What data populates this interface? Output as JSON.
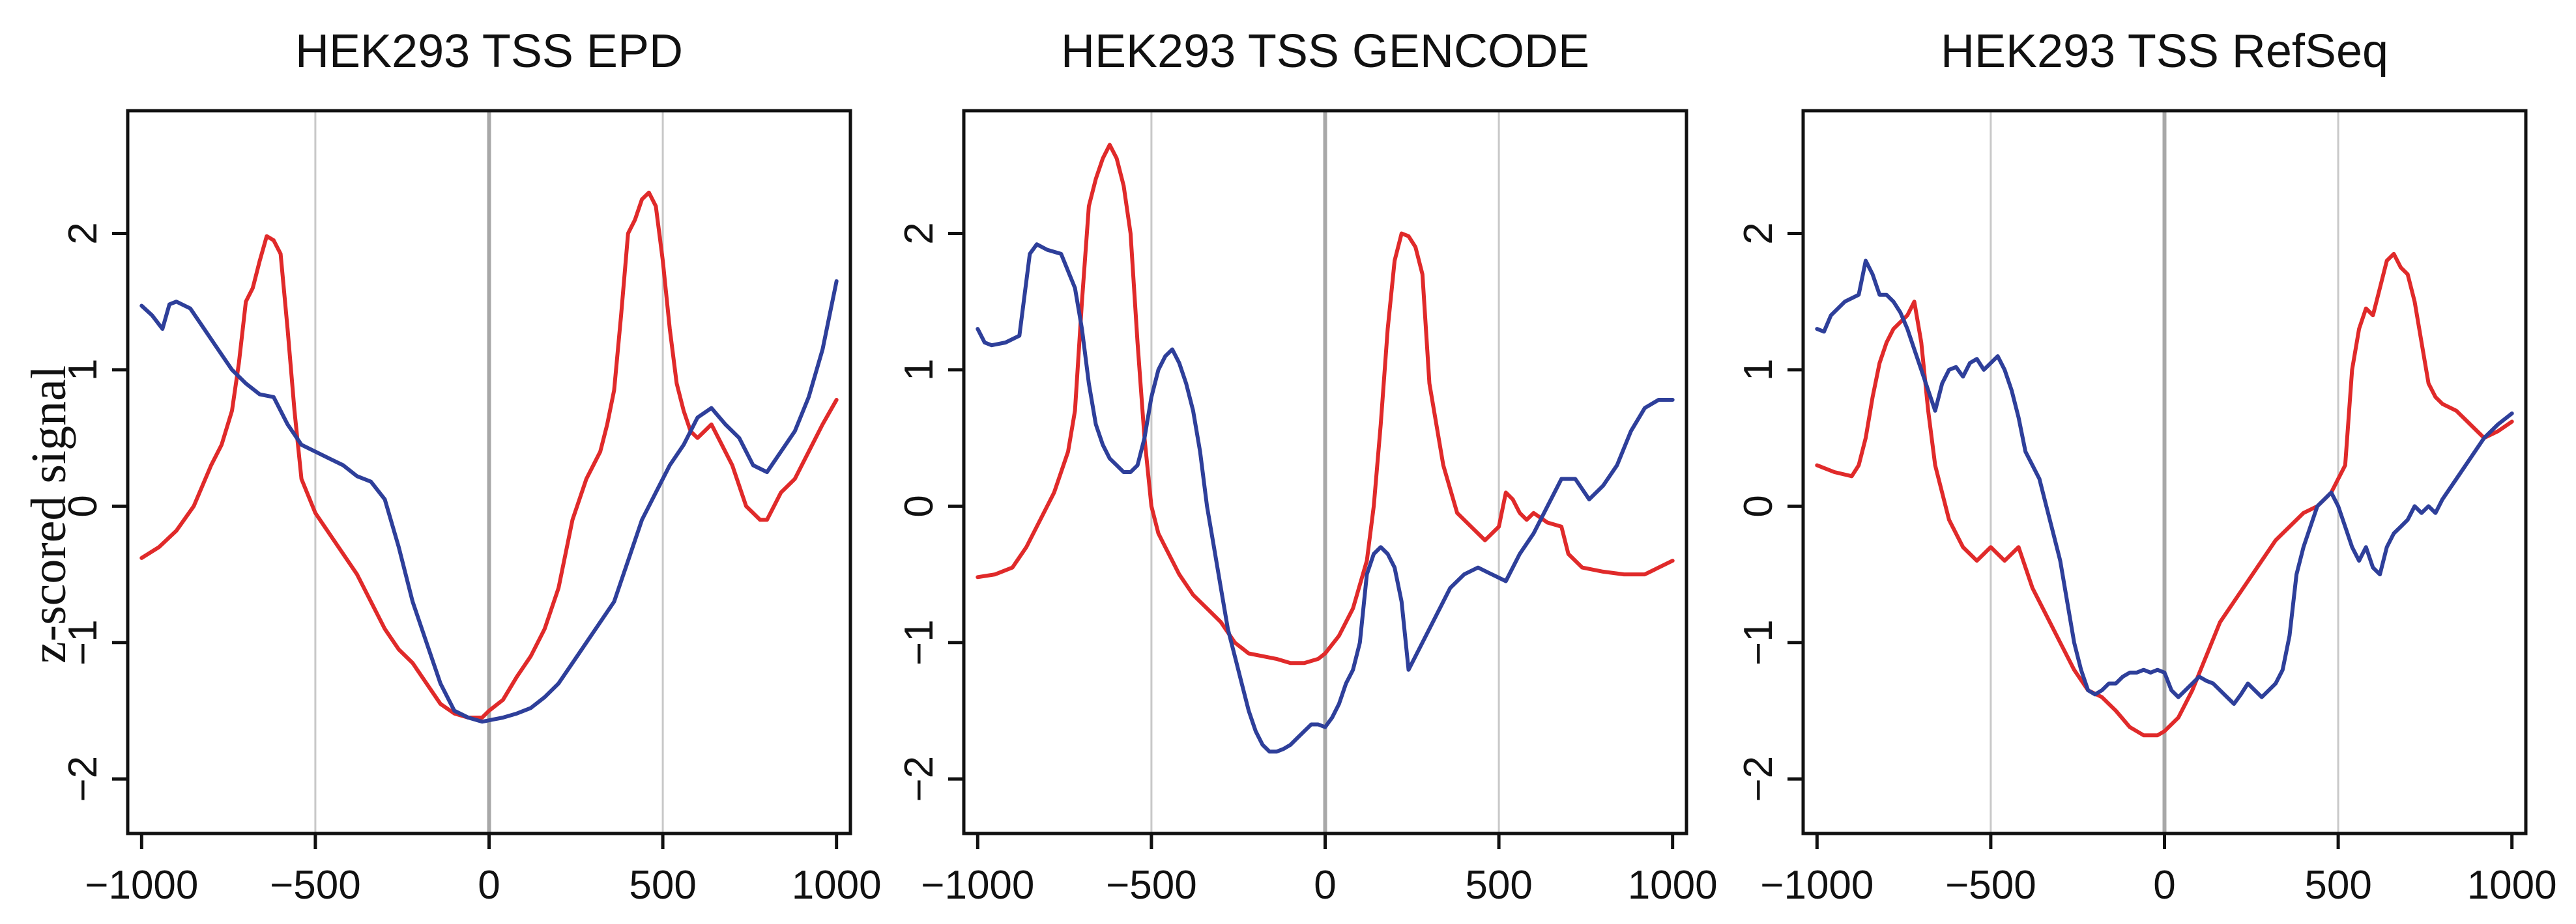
{
  "figure": {
    "ylabel": "z-scored signal",
    "colors": {
      "red": "#e02a2a",
      "blue": "#2e3f9a",
      "grid": "#c8c8c8",
      "zero": "#a8a8a8",
      "frame": "#111111"
    }
  },
  "chart_data": [
    {
      "type": "line",
      "title": "HEK293 TSS EPD",
      "xlabel": "",
      "ylabel": "z-scored signal",
      "xlim": [
        -1040,
        1040
      ],
      "ylim": [
        -2.4,
        2.9
      ],
      "xticks": [
        -1000,
        -500,
        0,
        500,
        1000
      ],
      "xtick_labels": [
        "−1000",
        "−500",
        "0",
        "500",
        "1000"
      ],
      "yticks": [
        -2,
        -1,
        0,
        1,
        2
      ],
      "ytick_labels": [
        "−2",
        "−1",
        "0",
        "1",
        "2"
      ],
      "vlines": [
        -500,
        0,
        500
      ],
      "series": [
        {
          "name": "red",
          "color": "#e02a2a",
          "x": [
            -1000,
            -950,
            -900,
            -850,
            -800,
            -770,
            -740,
            -720,
            -700,
            -680,
            -660,
            -640,
            -620,
            -600,
            -580,
            -560,
            -540,
            -500,
            -460,
            -420,
            -380,
            -340,
            -300,
            -260,
            -220,
            -180,
            -140,
            -100,
            -60,
            -20,
            0,
            40,
            80,
            120,
            160,
            200,
            240,
            280,
            320,
            340,
            360,
            380,
            400,
            420,
            440,
            460,
            480,
            500,
            520,
            540,
            560,
            580,
            600,
            620,
            640,
            660,
            700,
            740,
            780,
            800,
            820,
            840,
            880,
            920,
            960,
            1000
          ],
          "y": [
            -0.38,
            -0.3,
            -0.18,
            0.0,
            0.3,
            0.45,
            0.7,
            1.05,
            1.5,
            1.6,
            1.8,
            1.98,
            1.95,
            1.85,
            1.3,
            0.7,
            0.2,
            -0.05,
            -0.2,
            -0.35,
            -0.5,
            -0.7,
            -0.9,
            -1.05,
            -1.15,
            -1.3,
            -1.45,
            -1.52,
            -1.55,
            -1.55,
            -1.5,
            -1.42,
            -1.25,
            -1.1,
            -0.9,
            -0.6,
            -0.1,
            0.2,
            0.4,
            0.6,
            0.85,
            1.4,
            2.0,
            2.1,
            2.25,
            2.3,
            2.2,
            1.8,
            1.3,
            0.9,
            0.7,
            0.55,
            0.5,
            0.55,
            0.6,
            0.5,
            0.3,
            0.0,
            -0.1,
            -0.1,
            0.0,
            0.1,
            0.2,
            0.4,
            0.6,
            0.78
          ]
        },
        {
          "name": "blue",
          "color": "#2e3f9a",
          "x": [
            -1000,
            -970,
            -940,
            -920,
            -900,
            -860,
            -820,
            -780,
            -740,
            -700,
            -660,
            -620,
            -580,
            -540,
            -500,
            -460,
            -420,
            -380,
            -340,
            -300,
            -260,
            -220,
            -180,
            -140,
            -100,
            -60,
            -20,
            0,
            40,
            80,
            120,
            160,
            200,
            240,
            280,
            320,
            360,
            400,
            440,
            480,
            520,
            560,
            600,
            640,
            680,
            720,
            760,
            800,
            840,
            880,
            920,
            960,
            1000
          ],
          "y": [
            1.47,
            1.4,
            1.3,
            1.48,
            1.5,
            1.45,
            1.3,
            1.15,
            1.0,
            0.9,
            0.82,
            0.8,
            0.6,
            0.45,
            0.4,
            0.35,
            0.3,
            0.22,
            0.18,
            0.05,
            -0.3,
            -0.7,
            -1.0,
            -1.3,
            -1.5,
            -1.55,
            -1.58,
            -1.57,
            -1.55,
            -1.52,
            -1.48,
            -1.4,
            -1.3,
            -1.15,
            -1.0,
            -0.85,
            -0.7,
            -0.4,
            -0.1,
            0.1,
            0.3,
            0.45,
            0.65,
            0.72,
            0.6,
            0.5,
            0.3,
            0.25,
            0.4,
            0.55,
            0.8,
            1.15,
            1.65
          ]
        }
      ]
    },
    {
      "type": "line",
      "title": "HEK293 TSS GENCODE",
      "xlabel": "",
      "ylabel": "",
      "xlim": [
        -1040,
        1040
      ],
      "ylim": [
        -2.4,
        2.9
      ],
      "xticks": [
        -1000,
        -500,
        0,
        500,
        1000
      ],
      "xtick_labels": [
        "−1000",
        "−500",
        "0",
        "500",
        "1000"
      ],
      "yticks": [
        -2,
        -1,
        0,
        1,
        2
      ],
      "ytick_labels": [
        "−2",
        "−1",
        "0",
        "1",
        "2"
      ],
      "vlines": [
        -500,
        0,
        500
      ],
      "series": [
        {
          "name": "red",
          "color": "#e02a2a",
          "x": [
            -1000,
            -950,
            -900,
            -860,
            -820,
            -780,
            -740,
            -720,
            -700,
            -680,
            -660,
            -640,
            -620,
            -600,
            -580,
            -560,
            -540,
            -520,
            -500,
            -480,
            -460,
            -420,
            -380,
            -340,
            -300,
            -260,
            -220,
            -180,
            -140,
            -100,
            -60,
            -20,
            0,
            40,
            80,
            120,
            140,
            160,
            180,
            200,
            220,
            240,
            260,
            280,
            300,
            340,
            380,
            420,
            460,
            500,
            520,
            540,
            560,
            580,
            600,
            640,
            680,
            700,
            740,
            800,
            860,
            920,
            960,
            1000
          ],
          "y": [
            -0.52,
            -0.5,
            -0.45,
            -0.3,
            -0.1,
            0.1,
            0.4,
            0.7,
            1.5,
            2.2,
            2.4,
            2.55,
            2.65,
            2.55,
            2.35,
            2.0,
            1.2,
            0.5,
            0.0,
            -0.2,
            -0.3,
            -0.5,
            -0.65,
            -0.75,
            -0.85,
            -1.0,
            -1.08,
            -1.1,
            -1.12,
            -1.15,
            -1.15,
            -1.12,
            -1.08,
            -0.95,
            -0.75,
            -0.4,
            0.0,
            0.6,
            1.3,
            1.8,
            2.0,
            1.98,
            1.9,
            1.7,
            0.9,
            0.3,
            -0.05,
            -0.15,
            -0.25,
            -0.15,
            0.1,
            0.05,
            -0.05,
            -0.1,
            -0.05,
            -0.12,
            -0.15,
            -0.35,
            -0.45,
            -0.48,
            -0.5,
            -0.5,
            -0.45,
            -0.4
          ]
        },
        {
          "name": "blue",
          "color": "#2e3f9a",
          "x": [
            -1000,
            -980,
            -960,
            -920,
            -880,
            -850,
            -830,
            -800,
            -760,
            -720,
            -700,
            -680,
            -660,
            -640,
            -620,
            -600,
            -580,
            -560,
            -540,
            -520,
            -500,
            -480,
            -460,
            -440,
            -420,
            -400,
            -380,
            -360,
            -340,
            -320,
            -300,
            -280,
            -260,
            -240,
            -220,
            -200,
            -180,
            -160,
            -140,
            -120,
            -100,
            -80,
            -60,
            -40,
            -20,
            0,
            20,
            40,
            60,
            80,
            100,
            120,
            140,
            160,
            180,
            200,
            220,
            240,
            280,
            320,
            360,
            400,
            440,
            480,
            520,
            560,
            600,
            640,
            680,
            720,
            760,
            800,
            840,
            880,
            920,
            960,
            1000
          ],
          "y": [
            1.3,
            1.2,
            1.18,
            1.2,
            1.25,
            1.85,
            1.92,
            1.88,
            1.85,
            1.6,
            1.3,
            0.9,
            0.6,
            0.45,
            0.35,
            0.3,
            0.25,
            0.25,
            0.3,
            0.5,
            0.8,
            1.0,
            1.1,
            1.15,
            1.05,
            0.9,
            0.7,
            0.4,
            0.0,
            -0.3,
            -0.6,
            -0.9,
            -1.1,
            -1.3,
            -1.5,
            -1.65,
            -1.75,
            -1.8,
            -1.8,
            -1.78,
            -1.75,
            -1.7,
            -1.65,
            -1.6,
            -1.6,
            -1.62,
            -1.55,
            -1.45,
            -1.3,
            -1.2,
            -1.0,
            -0.5,
            -0.35,
            -0.3,
            -0.35,
            -0.45,
            -0.7,
            -1.2,
            -1.0,
            -0.8,
            -0.6,
            -0.5,
            -0.45,
            -0.5,
            -0.55,
            -0.35,
            -0.2,
            0.0,
            0.2,
            0.2,
            0.05,
            0.15,
            0.3,
            0.55,
            0.72,
            0.78,
            0.78
          ]
        }
      ]
    },
    {
      "type": "line",
      "title": "HEK293 TSS RefSeq",
      "xlabel": "",
      "ylabel": "",
      "xlim": [
        -1040,
        1040
      ],
      "ylim": [
        -2.4,
        2.9
      ],
      "xticks": [
        -1000,
        -500,
        0,
        500,
        1000
      ],
      "xtick_labels": [
        "−1000",
        "−500",
        "0",
        "500",
        "1000"
      ],
      "yticks": [
        -2,
        -1,
        0,
        1,
        2
      ],
      "ytick_labels": [
        "−2",
        "−1",
        "0",
        "1",
        "2"
      ],
      "vlines": [
        -500,
        0,
        500
      ],
      "series": [
        {
          "name": "red",
          "color": "#e02a2a",
          "x": [
            -1000,
            -950,
            -900,
            -880,
            -860,
            -840,
            -820,
            -800,
            -780,
            -760,
            -740,
            -720,
            -700,
            -680,
            -660,
            -620,
            -580,
            -540,
            -500,
            -460,
            -420,
            -380,
            -340,
            -300,
            -260,
            -220,
            -180,
            -140,
            -100,
            -60,
            -20,
            0,
            40,
            80,
            120,
            160,
            200,
            240,
            280,
            320,
            360,
            400,
            440,
            480,
            520,
            540,
            560,
            580,
            600,
            620,
            640,
            660,
            680,
            700,
            720,
            740,
            760,
            780,
            800,
            840,
            880,
            920,
            960,
            1000
          ],
          "y": [
            0.3,
            0.25,
            0.22,
            0.3,
            0.5,
            0.8,
            1.05,
            1.2,
            1.3,
            1.35,
            1.4,
            1.5,
            1.2,
            0.7,
            0.3,
            -0.1,
            -0.3,
            -0.4,
            -0.3,
            -0.4,
            -0.3,
            -0.6,
            -0.8,
            -1.0,
            -1.2,
            -1.35,
            -1.4,
            -1.5,
            -1.62,
            -1.68,
            -1.68,
            -1.65,
            -1.55,
            -1.35,
            -1.1,
            -0.85,
            -0.7,
            -0.55,
            -0.4,
            -0.25,
            -0.15,
            -0.05,
            0.0,
            0.1,
            0.3,
            1.0,
            1.3,
            1.45,
            1.4,
            1.6,
            1.8,
            1.85,
            1.75,
            1.7,
            1.5,
            1.2,
            0.9,
            0.8,
            0.75,
            0.7,
            0.6,
            0.5,
            0.55,
            0.62
          ]
        },
        {
          "name": "blue",
          "color": "#2e3f9a",
          "x": [
            -1000,
            -980,
            -960,
            -920,
            -880,
            -860,
            -840,
            -820,
            -800,
            -780,
            -760,
            -740,
            -720,
            -700,
            -680,
            -660,
            -640,
            -620,
            -600,
            -580,
            -560,
            -540,
            -520,
            -500,
            -480,
            -460,
            -440,
            -420,
            -400,
            -380,
            -360,
            -340,
            -320,
            -300,
            -280,
            -260,
            -240,
            -220,
            -200,
            -180,
            -160,
            -140,
            -120,
            -100,
            -80,
            -60,
            -40,
            -20,
            0,
            20,
            40,
            60,
            80,
            100,
            120,
            140,
            160,
            180,
            200,
            220,
            240,
            260,
            280,
            300,
            320,
            340,
            360,
            380,
            400,
            420,
            440,
            460,
            480,
            500,
            520,
            540,
            560,
            580,
            600,
            620,
            640,
            660,
            680,
            700,
            720,
            740,
            760,
            780,
            800,
            840,
            880,
            920,
            960,
            1000
          ],
          "y": [
            1.3,
            1.28,
            1.4,
            1.5,
            1.55,
            1.8,
            1.7,
            1.55,
            1.55,
            1.5,
            1.42,
            1.3,
            1.15,
            1.0,
            0.85,
            0.7,
            0.9,
            1.0,
            1.02,
            0.95,
            1.05,
            1.08,
            1.0,
            1.05,
            1.1,
            1.0,
            0.85,
            0.65,
            0.4,
            0.3,
            0.2,
            0.0,
            -0.2,
            -0.4,
            -0.7,
            -1.0,
            -1.2,
            -1.35,
            -1.38,
            -1.35,
            -1.3,
            -1.3,
            -1.25,
            -1.22,
            -1.22,
            -1.2,
            -1.22,
            -1.2,
            -1.22,
            -1.35,
            -1.4,
            -1.35,
            -1.3,
            -1.25,
            -1.28,
            -1.3,
            -1.35,
            -1.4,
            -1.45,
            -1.38,
            -1.3,
            -1.35,
            -1.4,
            -1.35,
            -1.3,
            -1.2,
            -0.95,
            -0.5,
            -0.3,
            -0.15,
            0.0,
            0.05,
            0.1,
            0.0,
            -0.15,
            -0.3,
            -0.4,
            -0.3,
            -0.45,
            -0.5,
            -0.3,
            -0.2,
            -0.15,
            -0.1,
            0.0,
            -0.05,
            0.0,
            -0.05,
            0.05,
            0.2,
            0.35,
            0.5,
            0.6,
            0.68
          ]
        }
      ]
    }
  ]
}
